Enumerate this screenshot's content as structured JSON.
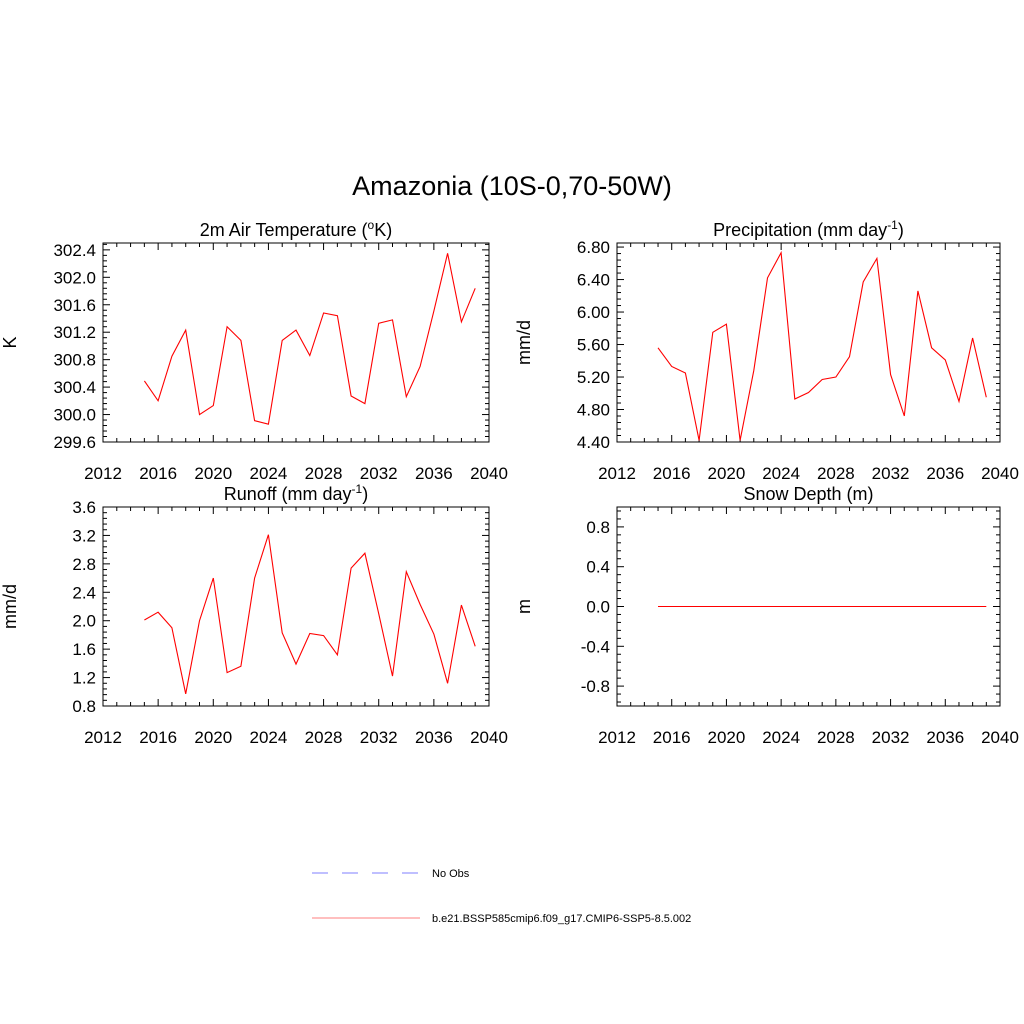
{
  "title": "Amazonia (10S-0,70-50W)",
  "chart_data": [
    {
      "type": "line",
      "title_main": "2m Air Temperature (",
      "title_sup_pre": "o",
      "title_after_sup": "K)",
      "title_tail": "",
      "ylabel": "K",
      "xlim": [
        2012,
        2040
      ],
      "ylim": [
        299.6,
        302.5
      ],
      "xticks": [
        2012,
        2016,
        2020,
        2024,
        2028,
        2032,
        2036,
        2040
      ],
      "yticks": [
        299.6,
        300.0,
        300.4,
        300.8,
        301.2,
        301.6,
        302.0,
        302.4
      ],
      "ytick_labels": [
        "299.6",
        "300.0",
        "300.4",
        "300.8",
        "301.2",
        "301.6",
        "302.0",
        "302.4"
      ],
      "series": [
        {
          "color": "#ff0000",
          "x": [
            2015,
            2016,
            2017,
            2018,
            2019,
            2020,
            2021,
            2022,
            2023,
            2024,
            2025,
            2026,
            2027,
            2028,
            2029,
            2030,
            2031,
            2032,
            2033,
            2034,
            2035,
            2036,
            2037,
            2038,
            2039
          ],
          "y": [
            300.49,
            300.2,
            300.85,
            301.23,
            300.0,
            300.13,
            301.28,
            301.08,
            299.91,
            299.86,
            301.08,
            301.23,
            300.86,
            301.48,
            301.44,
            300.27,
            300.16,
            301.33,
            301.38,
            300.26,
            300.7,
            301.51,
            302.35,
            301.35,
            301.84
          ]
        }
      ]
    },
    {
      "type": "line",
      "title_main": "Precipitation (mm day",
      "title_sup_pre": "-1",
      "title_after_sup": ")",
      "title_tail": "",
      "ylabel": "mm/d",
      "xlim": [
        2012,
        2040
      ],
      "ylim": [
        4.4,
        6.85
      ],
      "xticks": [
        2012,
        2016,
        2020,
        2024,
        2028,
        2032,
        2036,
        2040
      ],
      "yticks": [
        4.4,
        4.8,
        5.2,
        5.6,
        6.0,
        6.4,
        6.8
      ],
      "ytick_labels": [
        "4.40",
        "4.80",
        "5.20",
        "5.60",
        "6.00",
        "6.40",
        "6.80"
      ],
      "series": [
        {
          "color": "#ff0000",
          "x": [
            2015,
            2016,
            2017,
            2018,
            2019,
            2020,
            2021,
            2022,
            2023,
            2024,
            2025,
            2026,
            2027,
            2028,
            2029,
            2030,
            2031,
            2032,
            2033,
            2034,
            2035,
            2036,
            2037,
            2038,
            2039
          ],
          "y": [
            5.56,
            5.33,
            5.25,
            4.42,
            5.75,
            5.85,
            4.42,
            5.28,
            6.42,
            6.73,
            4.93,
            5.01,
            5.17,
            5.2,
            5.45,
            6.37,
            6.66,
            5.23,
            4.72,
            6.26,
            5.56,
            5.41,
            4.9,
            5.68,
            4.95
          ]
        }
      ]
    },
    {
      "type": "line",
      "title_main": "Runoff (mm day",
      "title_sup_pre": "-1",
      "title_after_sup": ")",
      "title_tail": "",
      "ylabel": "mm/d",
      "xlim": [
        2012,
        2040
      ],
      "ylim": [
        0.8,
        3.6
      ],
      "xticks": [
        2012,
        2016,
        2020,
        2024,
        2028,
        2032,
        2036,
        2040
      ],
      "yticks": [
        0.8,
        1.2,
        1.6,
        2.0,
        2.4,
        2.8,
        3.2,
        3.6
      ],
      "ytick_labels": [
        "0.8",
        "1.2",
        "1.6",
        "2.0",
        "2.4",
        "2.8",
        "3.2",
        "3.6"
      ],
      "series": [
        {
          "color": "#ff0000",
          "x": [
            2015,
            2016,
            2017,
            2018,
            2019,
            2020,
            2021,
            2022,
            2023,
            2024,
            2025,
            2026,
            2027,
            2028,
            2029,
            2030,
            2031,
            2032,
            2033,
            2034,
            2035,
            2036,
            2037,
            2038,
            2039
          ],
          "y": [
            2.01,
            2.12,
            1.9,
            0.97,
            2.0,
            2.6,
            1.27,
            1.36,
            2.6,
            3.21,
            1.83,
            1.39,
            1.82,
            1.79,
            1.52,
            2.74,
            2.95,
            2.1,
            1.22,
            2.69,
            2.23,
            1.81,
            1.12,
            2.22,
            1.64
          ]
        }
      ]
    },
    {
      "type": "line",
      "title_main": "Snow Depth (m)",
      "title_sup_pre": "",
      "title_after_sup": "",
      "title_tail": "",
      "ylabel": "m",
      "xlim": [
        2012,
        2040
      ],
      "ylim": [
        -1.0,
        1.0
      ],
      "xticks": [
        2012,
        2016,
        2020,
        2024,
        2028,
        2032,
        2036,
        2040
      ],
      "yticks": [
        -0.8,
        -0.4,
        0.0,
        0.4,
        0.8
      ],
      "ytick_labels": [
        "-0.8",
        "-0.4",
        "0.0",
        "0.4",
        "0.8"
      ],
      "series": [
        {
          "color": "#ff0000",
          "x": [
            2015,
            2016,
            2017,
            2018,
            2019,
            2020,
            2021,
            2022,
            2023,
            2024,
            2025,
            2026,
            2027,
            2028,
            2029,
            2030,
            2031,
            2032,
            2033,
            2034,
            2035,
            2036,
            2037,
            2038,
            2039
          ],
          "y": [
            0,
            0,
            0,
            0,
            0,
            0,
            0,
            0,
            0,
            0,
            0,
            0,
            0,
            0,
            0,
            0,
            0,
            0,
            0,
            0,
            0,
            0,
            0,
            0,
            0
          ]
        }
      ]
    }
  ],
  "legend": [
    {
      "label": "No Obs",
      "color": "#9999ff",
      "dash": true
    },
    {
      "label": "b.e21.BSSP585cmip6.f09_g17.CMIP6-SSP5-8.5.002",
      "color": "#ff9999",
      "dash": false
    }
  ]
}
